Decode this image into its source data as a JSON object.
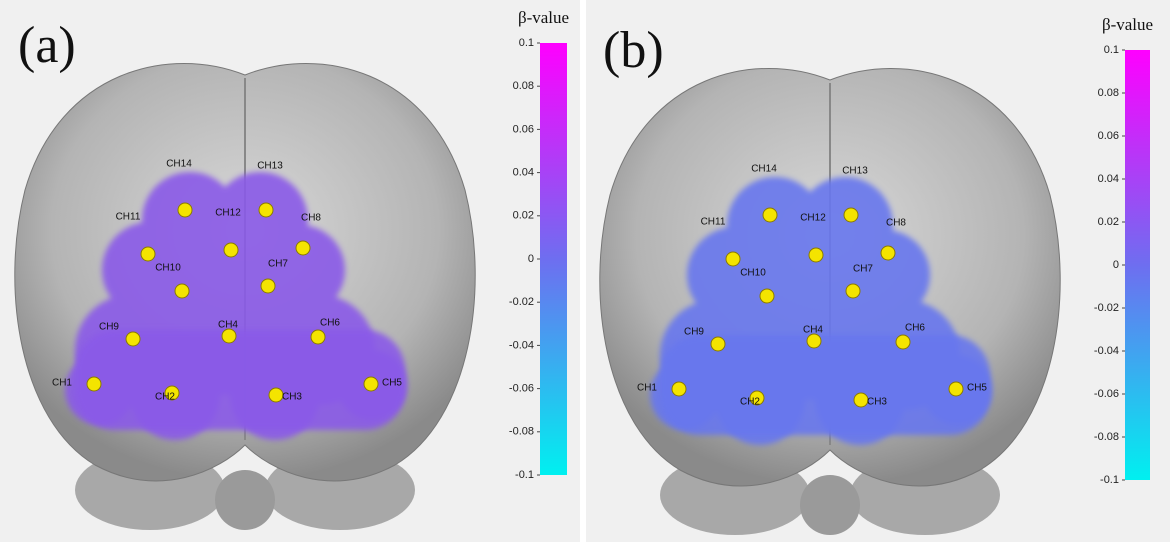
{
  "panels": [
    {
      "label": "(a)",
      "colorbar": {
        "title": "β-value",
        "lim": [
          -0.1,
          0.1
        ],
        "ticks": [
          0.1,
          0.08,
          0.06,
          0.04,
          0.02,
          0,
          -0.02,
          -0.04,
          -0.06,
          -0.08,
          -0.1
        ],
        "colors": [
          "#00f0f0",
          "#6e6ef0",
          "#ff00ff"
        ]
      },
      "channels": [
        "CH1",
        "CH2",
        "CH3",
        "CH4",
        "CH5",
        "CH6",
        "CH7",
        "CH8",
        "CH9",
        "CH10",
        "CH11",
        "CH12",
        "CH13",
        "CH14"
      ]
    },
    {
      "label": "(b)",
      "colorbar": {
        "title": "β-value",
        "lim": [
          -0.1,
          0.1
        ],
        "ticks": [
          0.1,
          0.08,
          0.06,
          0.04,
          0.02,
          0,
          -0.02,
          -0.04,
          -0.06,
          -0.08,
          -0.1
        ],
        "colors": [
          "#00f0f0",
          "#6e6ef0",
          "#ff00ff"
        ]
      },
      "channels": [
        "CH1",
        "CH2",
        "CH3",
        "CH4",
        "CH5",
        "CH6",
        "CH7",
        "CH8",
        "CH9",
        "CH10",
        "CH11",
        "CH12",
        "CH13",
        "CH14"
      ]
    }
  ]
}
